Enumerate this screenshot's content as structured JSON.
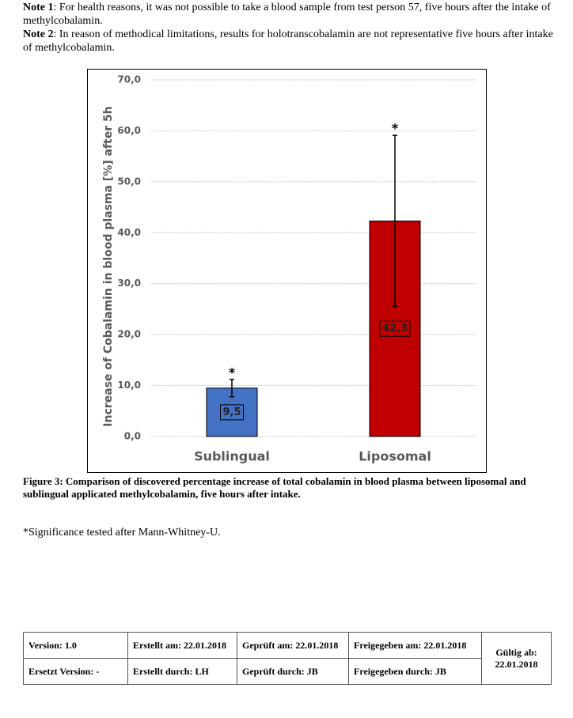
{
  "notes": [
    {
      "label": "Note 1",
      "text": ": For health reasons, it was not possible to take a blood sample from test person 57, five hours after the intake of methylcobalamin."
    },
    {
      "label": "Note 2",
      "text": ": In reason of methodical limitations, results for holotranscobalamin are not representative five hours after intake of methylcobalamin."
    }
  ],
  "chart_data": {
    "type": "bar",
    "ylabel": "Increase of Cobalamin in blood plasma [%] after 5h",
    "categories": [
      "Sublingual",
      "Liposomal"
    ],
    "values": [
      9.5,
      42.3
    ],
    "value_labels": [
      "9,5",
      "42,3"
    ],
    "errors": [
      1.7,
      16.8
    ],
    "significance_marks": [
      "*",
      "*"
    ],
    "colors": [
      "#4472c4",
      "#c00000"
    ],
    "ylim": [
      0,
      70
    ],
    "yticks": [
      {
        "value": 0,
        "label": "0,0"
      },
      {
        "value": 10,
        "label": "10,0"
      },
      {
        "value": 20,
        "label": "20,0"
      },
      {
        "value": 30,
        "label": "30,0"
      },
      {
        "value": 40,
        "label": "40,0"
      },
      {
        "value": 50,
        "label": "50,0"
      },
      {
        "value": 60,
        "label": "60,0"
      },
      {
        "value": 70,
        "label": "70,0"
      }
    ],
    "grid": true
  },
  "caption": "Figure 3: Comparison of discovered percentage increase of total cobalamin in blood plasma between liposomal and sublingual applicated methylcobalamin, five hours after intake.",
  "footnote": "*Significance tested after Mann-Whitney-U.",
  "table": {
    "rows": [
      [
        "Version: 1.0",
        "Erstellt am: 22.01.2018",
        "Geprüft am: 22.01.2018",
        "Freigegeben am: 22.01.2018",
        "Gültig ab: 22.01.2018"
      ],
      [
        "Ersetzt Version: -",
        "Erstellt durch: LH",
        "Geprüft durch: JB",
        "Freigegeben durch: JB"
      ]
    ]
  }
}
